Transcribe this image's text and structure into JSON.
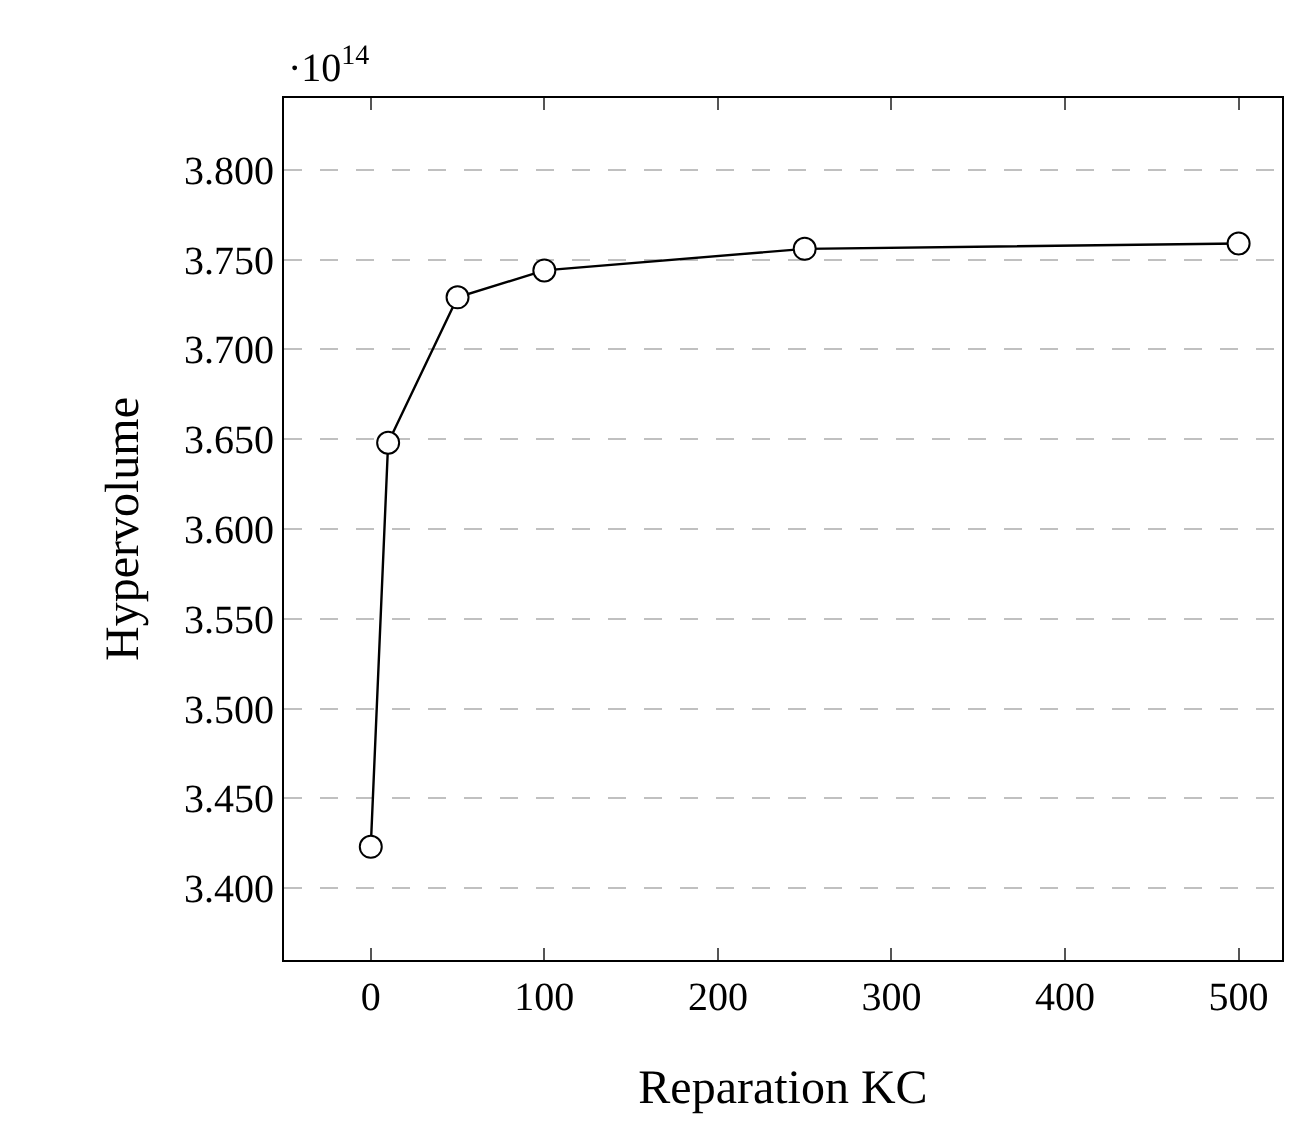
{
  "chart_data": {
    "type": "line",
    "xlabel": "Reparation KC",
    "ylabel": "Hypervolume",
    "annotations": [
      "·10$^{14}$"
    ],
    "x": [
      0,
      10,
      50,
      100,
      250,
      500
    ],
    "series": [
      {
        "color": "#000000",
        "values": [
          3.423,
          3.648,
          3.729,
          3.744,
          3.756,
          3.759
        ]
      }
    ],
    "xlim": [
      -50,
      525
    ],
    "xticks": [
      0,
      100,
      200,
      300,
      400,
      500
    ],
    "ylim": [
      3.36,
      3.84
    ],
    "yticks": [
      {
        "value": 3.4,
        "label": "3.400"
      },
      {
        "value": 3.45,
        "label": "3.450"
      },
      {
        "value": 3.5,
        "label": "3.500"
      },
      {
        "value": 3.55,
        "label": "3.550"
      },
      {
        "value": 3.6,
        "label": "3.600"
      },
      {
        "value": 3.65,
        "label": "3.650"
      },
      {
        "value": 3.7,
        "label": "3.700"
      },
      {
        "value": 3.75,
        "label": "3.750"
      },
      {
        "value": 3.8,
        "label": "3.800"
      }
    ],
    "grid": "y",
    "marker": "circle",
    "line_style": "solid"
  }
}
